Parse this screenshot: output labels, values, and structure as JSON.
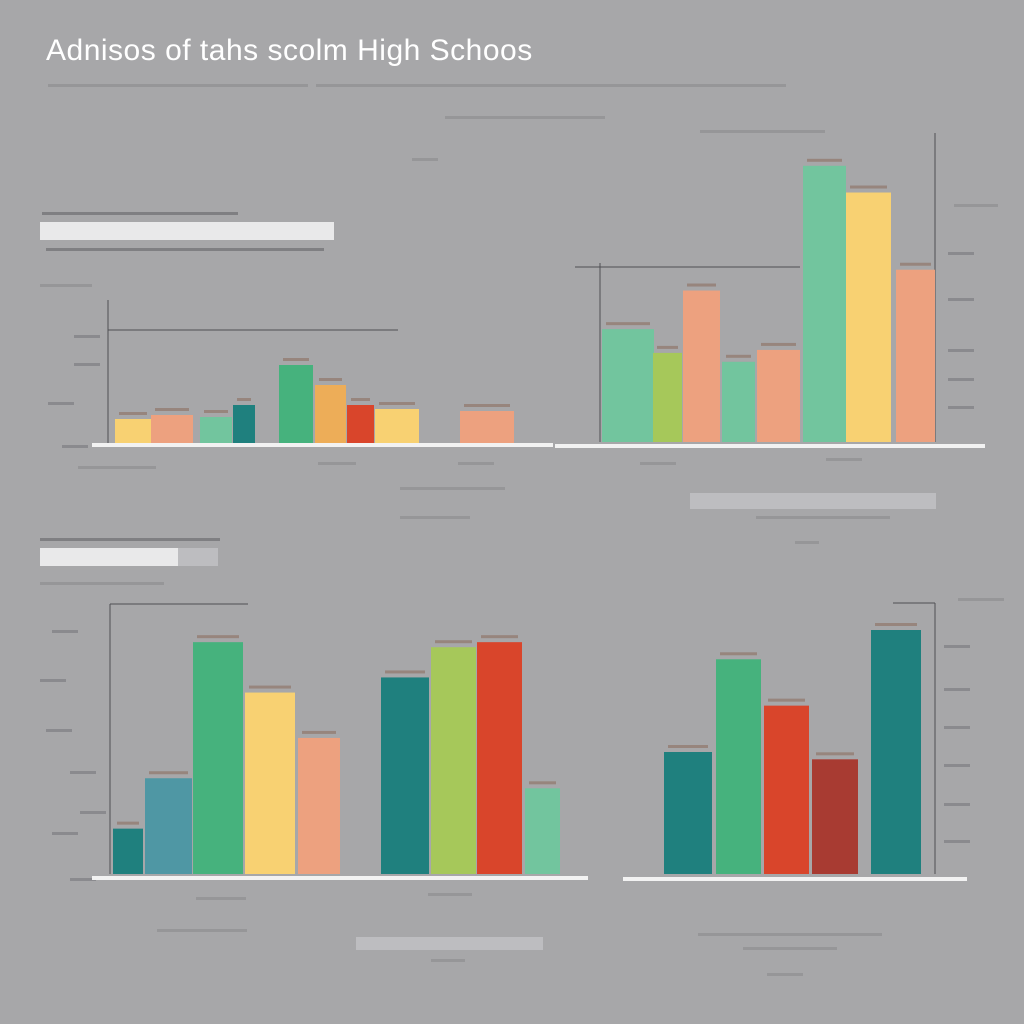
{
  "title": "Adnisos of tahs scolm High Schoos",
  "colors": {
    "background": "#a7a7a9",
    "teal": "#1f807e",
    "mint": "#72c59e",
    "green": "#46b27d",
    "lime": "#a6c85a",
    "yellow": "#f8d172",
    "salmon": "#eda17f",
    "orange": "#edad58",
    "red": "#d9452b",
    "darkred": "#a83b32",
    "steel": "#4f97a4"
  },
  "chart_data": [
    {
      "type": "bar",
      "panel": "top-left",
      "ylim": [
        0,
        100
      ],
      "values": [
        12,
        14,
        13,
        19,
        39,
        29,
        19,
        17,
        16
      ]
    },
    {
      "type": "bar",
      "panel": "top-right",
      "ylim": [
        0,
        100
      ],
      "values": [
        38,
        30,
        51,
        27,
        31,
        93,
        84,
        58
      ]
    },
    {
      "type": "bar",
      "panel": "bottom-left",
      "ylim": [
        0,
        100
      ],
      "values": [
        18,
        38,
        92,
        72,
        54,
        78,
        90,
        92,
        34
      ]
    },
    {
      "type": "bar",
      "panel": "bottom-right",
      "ylim": [
        0,
        100
      ],
      "values": [
        50,
        88,
        69,
        47,
        100
      ]
    }
  ]
}
